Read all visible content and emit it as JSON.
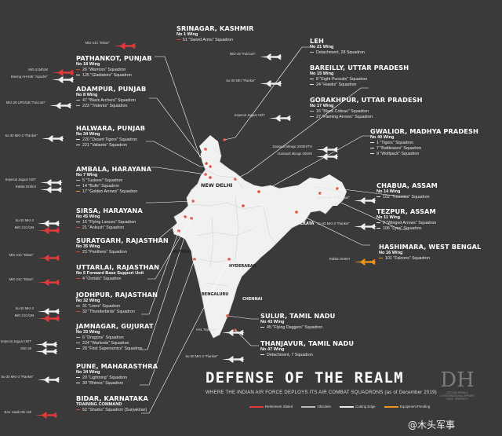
{
  "title": "DEFENSE OF THE REALM",
  "subtitle": "WHERE THE INDIAN AIR FORCE DEPLOYS ITS AIR COMBAT SQUADRONS (as of December 2019)",
  "legend": [
    {
      "label": "Retirement Slated",
      "color": "#e23a3a"
    },
    {
      "label": "Obsolete",
      "color": "#bdbdbd"
    },
    {
      "label": "Cutting Edge",
      "color": "#eaeaea"
    },
    {
      "label": "Equipment Pending",
      "color": "#e8941f"
    }
  ],
  "logo": {
    "mark": "DH",
    "line1": "DECCAN HERALD",
    "line2": "IN INTERNATIONAL AFFAIRS",
    "line3": "DATA · GRAPHICS"
  },
  "watermark": "@木头军事",
  "cities": {
    "new_delhi": "NEW DELHI",
    "mumbai": "MUMBAI",
    "hyderabad": "HYDERABAD",
    "bengaluru": "BENGALURU",
    "chennai": "CHENNAI",
    "kolkata": "KOLKATA"
  },
  "bases": [
    {
      "id": "srinagar",
      "title": "SRINAGAR, KASHMIR",
      "wing": "No 1 Wing",
      "squadrons": [
        {
          "t": "51 \"Sword Arms\" Squadron",
          "s": "ret"
        }
      ],
      "aircraft": [
        "MiG-21C \"Bison\""
      ]
    },
    {
      "id": "leh",
      "title": "LEH",
      "wing": "No 21 Wing",
      "squadrons": [
        {
          "t": "Detachment, 28 Squadron",
          "s": "obs"
        }
      ],
      "aircraft": [
        "MiG-29 \"Fulcrum\""
      ]
    },
    {
      "id": "pathankot",
      "title": "PATHANKOT, PUNJAB",
      "wing": "No 18 Wing",
      "squadrons": [
        {
          "t": "26 \"Warriors\" Squadron",
          "s": "ret"
        },
        {
          "t": "125 \"Gladiators\" Squadron",
          "s": "cut"
        }
      ],
      "aircraft": [
        "MiG-21M/UM",
        "Boeing AH-64E \"Apache\""
      ]
    },
    {
      "id": "bareilly",
      "title": "BAREILLY, UTTAR PRADESH",
      "wing": "No 15 Wing",
      "squadrons": [
        {
          "t": "8 \"Eight Pursuits\" Squadron",
          "s": "cut"
        },
        {
          "t": "24 \"Hawks\" Squadron",
          "s": "cut"
        }
      ],
      "aircraft": [
        "Su-30 MKI \"Flanker\""
      ]
    },
    {
      "id": "adampur",
      "title": "ADAMPUR, PUNJAB",
      "wing": "No 8 Wing",
      "squadrons": [
        {
          "t": "47 \"Black Archers\" Squadron",
          "s": "obs"
        },
        {
          "t": "223 \"Tridents\" Squadron",
          "s": "obs"
        }
      ],
      "aircraft": [
        "MiG-29 UPG/UB \"Fulcrum\""
      ]
    },
    {
      "id": "gorakhpur",
      "title": "GORAKHPUR, UTTAR PRADESH",
      "wing": "No 17 Wing",
      "squadrons": [
        {
          "t": "16 \"Black Cobras\" Squadron",
          "s": "obs"
        },
        {
          "t": "27 \"Flaming Arrows\" Squadron",
          "s": "obs"
        }
      ],
      "aircraft": [
        "Sepecat Jaguar IS/IT"
      ]
    },
    {
      "id": "halwara",
      "title": "HALWARA, PUNJAB",
      "wing": "No 34 Wing",
      "squadrons": [
        {
          "t": "220 \"Desert Tigers\" Squadron",
          "s": "cut"
        },
        {
          "t": "221 \"Valiants\" Squadron",
          "s": "cut"
        }
      ],
      "aircraft": [
        "Su-30 MKI-3 \"Flanker\""
      ]
    },
    {
      "id": "gwalior",
      "title": "GWALIOR, MADHYA PRADESH",
      "wing": "No 40 Wing",
      "squadrons": [
        {
          "t": "1 \"Tigers\" Squadron",
          "s": "cut"
        },
        {
          "t": "7 \"Battleaxes\" Squadron",
          "s": "cut"
        },
        {
          "t": "9 \"Wolfpack\" Squadron",
          "s": "cut"
        }
      ],
      "aircraft": [
        "Dassault Mirage 2000H/TH",
        "Dassault Mirage 2000H"
      ]
    },
    {
      "id": "ambala",
      "title": "AMBALA, HARAYANA",
      "wing": "No 7 Wing",
      "squadrons": [
        {
          "t": "5 \"Tuskers\" Squadron",
          "s": "obs"
        },
        {
          "t": "14 \"Bulls\" Squadron",
          "s": "obs"
        },
        {
          "t": "17 \"Golden Arrows\" Squadron",
          "s": "pen"
        }
      ],
      "aircraft": [
        "Sepecat Jaguar IS/IT",
        "Rafale DH/EH"
      ]
    },
    {
      "id": "chabua",
      "title": "CHABUA, ASSAM",
      "wing": "No 14 Wing",
      "squadrons": [
        {
          "t": "102 \"Trisonics\" Squadron",
          "s": "cut"
        }
      ],
      "aircraft": [
        "Su-30 MKI-3 \"Flanker\""
      ]
    },
    {
      "id": "sirsa",
      "title": "SIRSA, HARAYANA",
      "wing": "No 45 Wing",
      "squadrons": [
        {
          "t": "15 \"Flying Lances\" Squadron",
          "s": "cut"
        },
        {
          "t": "21 \"Ankush\" Squadron",
          "s": "ret"
        }
      ],
      "aircraft": [
        "Su-30 MKI-3",
        "MiG-21C/UM"
      ]
    },
    {
      "id": "tezpur",
      "title": "TEZPUR, ASSAM",
      "wing": "No 11 Wing",
      "squadrons": [
        {
          "t": "2 \"Winged Arrows\" Squadron",
          "s": "cut"
        },
        {
          "t": "106 \"Lynx\" Squadron",
          "s": "cut"
        }
      ],
      "aircraft": [
        "Su-30 MKI-3 \"Flanker\""
      ]
    },
    {
      "id": "suratgarh",
      "title": "SURATGARH, RAJASTHAN",
      "wing": "No 35 Wing",
      "squadrons": [
        {
          "t": "23 \"Panthers\" Squadron",
          "s": "ret"
        }
      ],
      "aircraft": [
        "MiG-21C \"Bison\""
      ]
    },
    {
      "id": "hashimara",
      "title": "HASHIMARA, WEST BENGAL",
      "wing": "No 16 Wing",
      "squadrons": [
        {
          "t": "101 \"Falcons\" Squadron",
          "s": "pen"
        }
      ],
      "aircraft": [
        "Rafale DH/EH"
      ]
    },
    {
      "id": "uttarlai",
      "title": "UTTARLAI, RAJASTHAN",
      "wing": "No 5 Forward Base Support Unit",
      "squadrons": [
        {
          "t": "4 \"Oorials\" Squadron",
          "s": "ret"
        }
      ],
      "aircraft": [
        "MiG-21C \"Bison\""
      ]
    },
    {
      "id": "jodhpur",
      "title": "JODHPUR, RAJASTHAN",
      "wing": "No 32 Wing",
      "squadrons": [
        {
          "t": "31 \"Lions\" Squadron",
          "s": "cut"
        },
        {
          "t": "32 \"Thunderbirds\" Squadron",
          "s": "ret"
        }
      ],
      "aircraft": [
        "Su-30 MKI-3",
        "MiG-21C/UM"
      ]
    },
    {
      "id": "sulur",
      "title": "SULUR, TAMIL NADU",
      "wing": "No 43 Wing",
      "squadrons": [
        {
          "t": "45 \"Flying Daggers\" Squadron",
          "s": "cut"
        }
      ],
      "aircraft": [
        "HAL Tejas Mk I"
      ]
    },
    {
      "id": "jamnagar",
      "title": "JAMNAGAR, GUJURAT",
      "wing": "No 33 Wing",
      "squadrons": [
        {
          "t": "6 \"Dragons\" Squadron",
          "s": "obs"
        },
        {
          "t": "224 \"Warlords\" Squadron",
          "s": "obs"
        },
        {
          "t": "28 \"First Supersonics\" Squadron",
          "s": "obs"
        }
      ],
      "aircraft": [
        "Sepecat Jaguar IS/IT",
        "MiG-29"
      ]
    },
    {
      "id": "thanjavur",
      "title": "THANJAVUR, TAMIL NADU",
      "wing": "No 47 Wing",
      "squadrons": [
        {
          "t": "Detachment, 7 Squadron",
          "s": "cut"
        }
      ],
      "aircraft": [
        "Su-30 MKI-3 \"Flanker\""
      ]
    },
    {
      "id": "pune",
      "title": "PUNE, MAHARASTHRA",
      "wing": "No 34 Wing",
      "squadrons": [
        {
          "t": "20 \"Lightning\" Squadron",
          "s": "cut"
        },
        {
          "t": "30 \"Rhinos\" Squadron",
          "s": "cut"
        }
      ],
      "aircraft": [
        "Su-30 MKI-3 \"Flanker\""
      ]
    },
    {
      "id": "bidar",
      "title": "BIDAR, KARNATAKA",
      "wing": "TRAINING COMMAND",
      "squadrons": [
        {
          "t": "52 \"Sharks\" Squadron (Suryakiran)",
          "s": "ret"
        }
      ],
      "aircraft": [
        "BAe Hawk Mk 132"
      ]
    }
  ]
}
